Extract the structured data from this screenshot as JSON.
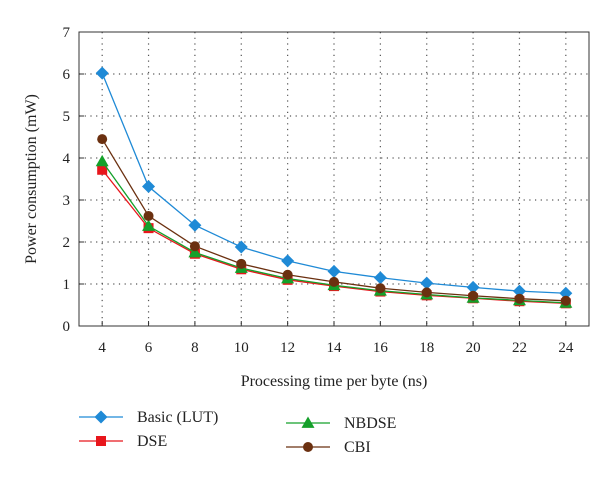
{
  "chart_data": {
    "type": "line",
    "title": "",
    "xlabel": "Processing time per byte (ns)",
    "ylabel": "Power consumption (mW)",
    "xlim": [
      3,
      25
    ],
    "ylim": [
      0,
      7
    ],
    "x_ticks": [
      4,
      6,
      8,
      10,
      12,
      14,
      16,
      18,
      20,
      22,
      24
    ],
    "y_ticks": [
      0,
      1,
      2,
      3,
      4,
      5,
      6,
      7
    ],
    "x": [
      4,
      6,
      8,
      10,
      12,
      14,
      16,
      18,
      20,
      22,
      24
    ],
    "grid": "dotted",
    "legend_position": "bottom",
    "series": [
      {
        "name": "Basic (LUT)",
        "color": "#1f8ad6",
        "marker": "diamond",
        "values": [
          6.02,
          3.32,
          2.4,
          1.88,
          1.55,
          1.3,
          1.15,
          1.02,
          0.92,
          0.83,
          0.78
        ]
      },
      {
        "name": "DSE",
        "color": "#e8161c",
        "marker": "square",
        "values": [
          3.72,
          2.33,
          1.72,
          1.35,
          1.1,
          0.95,
          0.82,
          0.73,
          0.66,
          0.59,
          0.54
        ]
      },
      {
        "name": "NBDSE",
        "color": "#14a02a",
        "marker": "triangle",
        "values": [
          3.92,
          2.38,
          1.75,
          1.38,
          1.13,
          0.97,
          0.84,
          0.75,
          0.67,
          0.61,
          0.55
        ]
      },
      {
        "name": "CBI",
        "color": "#6b3010",
        "marker": "circle",
        "values": [
          4.45,
          2.62,
          1.9,
          1.48,
          1.22,
          1.05,
          0.9,
          0.8,
          0.72,
          0.65,
          0.6
        ]
      }
    ]
  }
}
